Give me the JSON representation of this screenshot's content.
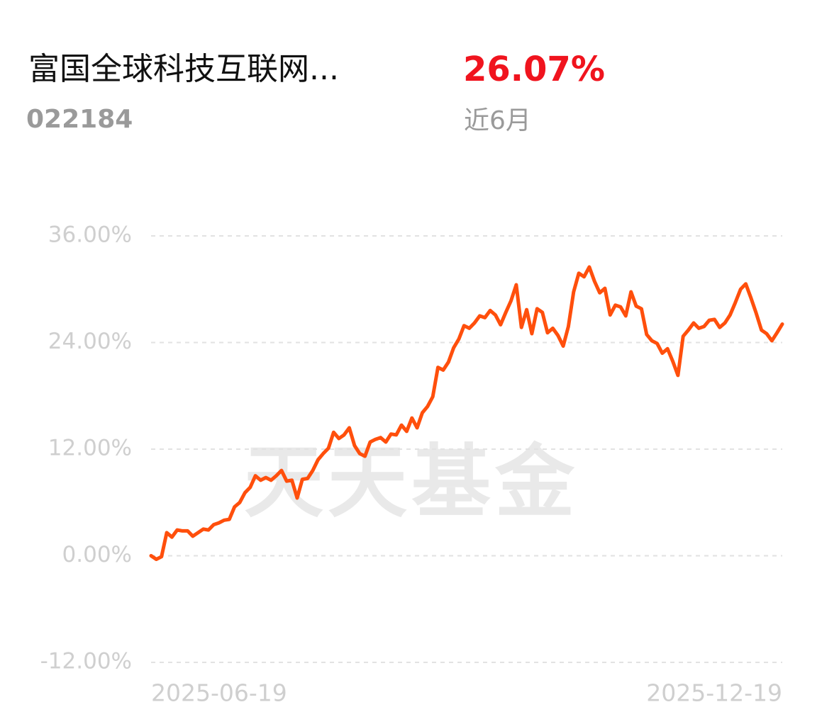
{
  "header": {
    "title": "富国全球科技互联网...",
    "code": "022184",
    "return": "26.07%",
    "period": "近6月"
  },
  "watermark": "天天基金",
  "chart_data": {
    "type": "line",
    "categories": [
      "2025-06-19",
      null,
      null,
      null,
      null,
      null,
      null,
      null,
      null,
      null,
      null,
      null,
      null,
      null,
      null,
      null,
      null,
      null,
      null,
      null,
      null,
      null,
      null,
      null,
      null,
      null,
      null,
      null,
      null,
      null,
      null,
      null,
      null,
      null,
      null,
      null,
      null,
      null,
      null,
      null,
      null,
      null,
      null,
      null,
      null,
      null,
      null,
      null,
      null,
      null,
      null,
      null,
      null,
      null,
      null,
      null,
      null,
      null,
      null,
      null,
      null,
      null,
      null,
      null,
      null,
      null,
      null,
      null,
      null,
      null,
      null,
      null,
      null,
      null,
      null,
      null,
      null,
      null,
      null,
      null,
      null,
      null,
      null,
      null,
      null,
      null,
      null,
      null,
      null,
      null,
      null,
      null,
      null,
      null,
      null,
      null,
      null,
      null,
      null,
      null,
      null,
      null,
      null,
      null,
      null,
      null,
      null,
      null,
      null,
      null,
      null,
      null,
      null,
      null,
      null,
      null,
      null,
      null,
      null,
      null,
      null,
      "2025-12-19"
    ],
    "series": [
      {
        "color": "#ff4f0c",
        "values": [
          0,
          -0.4,
          -0.1,
          2.6,
          2.1,
          2.9,
          2.8,
          2.8,
          2.2,
          2.6,
          3.0,
          2.9,
          3.5,
          3.7,
          4.0,
          4.1,
          5.5,
          6.0,
          7.1,
          7.7,
          9.0,
          8.5,
          8.8,
          8.5,
          9.0,
          9.6,
          8.4,
          8.5,
          6.5,
          8.6,
          8.7,
          9.6,
          10.8,
          11.5,
          12.1,
          13.9,
          13.2,
          13.6,
          14.4,
          12.4,
          11.5,
          11.2,
          12.8,
          13.1,
          13.3,
          12.8,
          13.7,
          13.6,
          14.7,
          14.0,
          15.5,
          14.4,
          16.1,
          16.8,
          17.9,
          21.2,
          20.9,
          21.8,
          23.4,
          24.4,
          25.9,
          25.6,
          26.2,
          27.0,
          26.8,
          27.6,
          27.1,
          26.0,
          27.4,
          28.7,
          30.5,
          25.7,
          27.7,
          25.0,
          27.8,
          27.4,
          25.1,
          25.6,
          24.8,
          23.6,
          25.8,
          29.7,
          31.8,
          31.4,
          32.5,
          30.9,
          29.6,
          30.1,
          27.1,
          28.2,
          28.0,
          27.0,
          29.7,
          28.1,
          27.8,
          24.9,
          24.2,
          23.9,
          22.8,
          23.3,
          21.9,
          20.3,
          24.7,
          25.4,
          26.2,
          25.6,
          25.8,
          26.5,
          26.6,
          25.7,
          26.2,
          27.1,
          28.5,
          30.0,
          30.6,
          29.0,
          27.3,
          25.4,
          25.0,
          24.2,
          25.1,
          26.07
        ]
      }
    ],
    "ylim": [
      -12,
      36
    ],
    "yticks": [
      {
        "value": -12,
        "label": "-12.00%"
      },
      {
        "value": 0,
        "label": "0.00%"
      },
      {
        "value": 12,
        "label": "12.00%"
      },
      {
        "value": 24,
        "label": "24.00%"
      },
      {
        "value": 36,
        "label": "36.00%"
      }
    ],
    "grid": true
  }
}
